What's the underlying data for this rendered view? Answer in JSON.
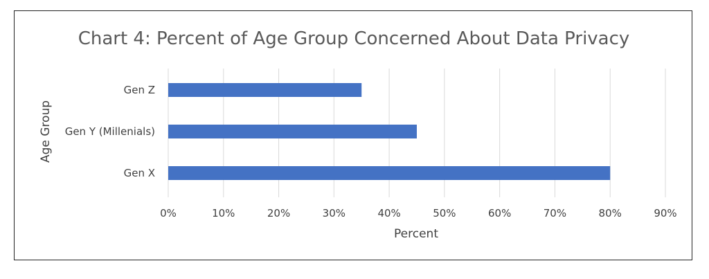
{
  "chart_data": {
    "type": "bar",
    "orientation": "horizontal",
    "title": "Chart 4: Percent of Age Group Concerned About Data Privacy",
    "xlabel": "Percent",
    "ylabel": "Age Group",
    "categories": [
      "Gen Z",
      "Gen Y (Millenials)",
      "Gen X"
    ],
    "values": [
      35,
      45,
      80
    ],
    "xlim": [
      0,
      90
    ],
    "xticks": [
      0,
      10,
      20,
      30,
      40,
      50,
      60,
      70,
      80,
      90
    ],
    "xtick_labels": [
      "0%",
      "10%",
      "20%",
      "30%",
      "40%",
      "50%",
      "60%",
      "70%",
      "80%",
      "90%"
    ],
    "grid": "vertical",
    "legend": "none",
    "bar_color": "#4472C4",
    "grid_color": "#D9D9D9"
  }
}
